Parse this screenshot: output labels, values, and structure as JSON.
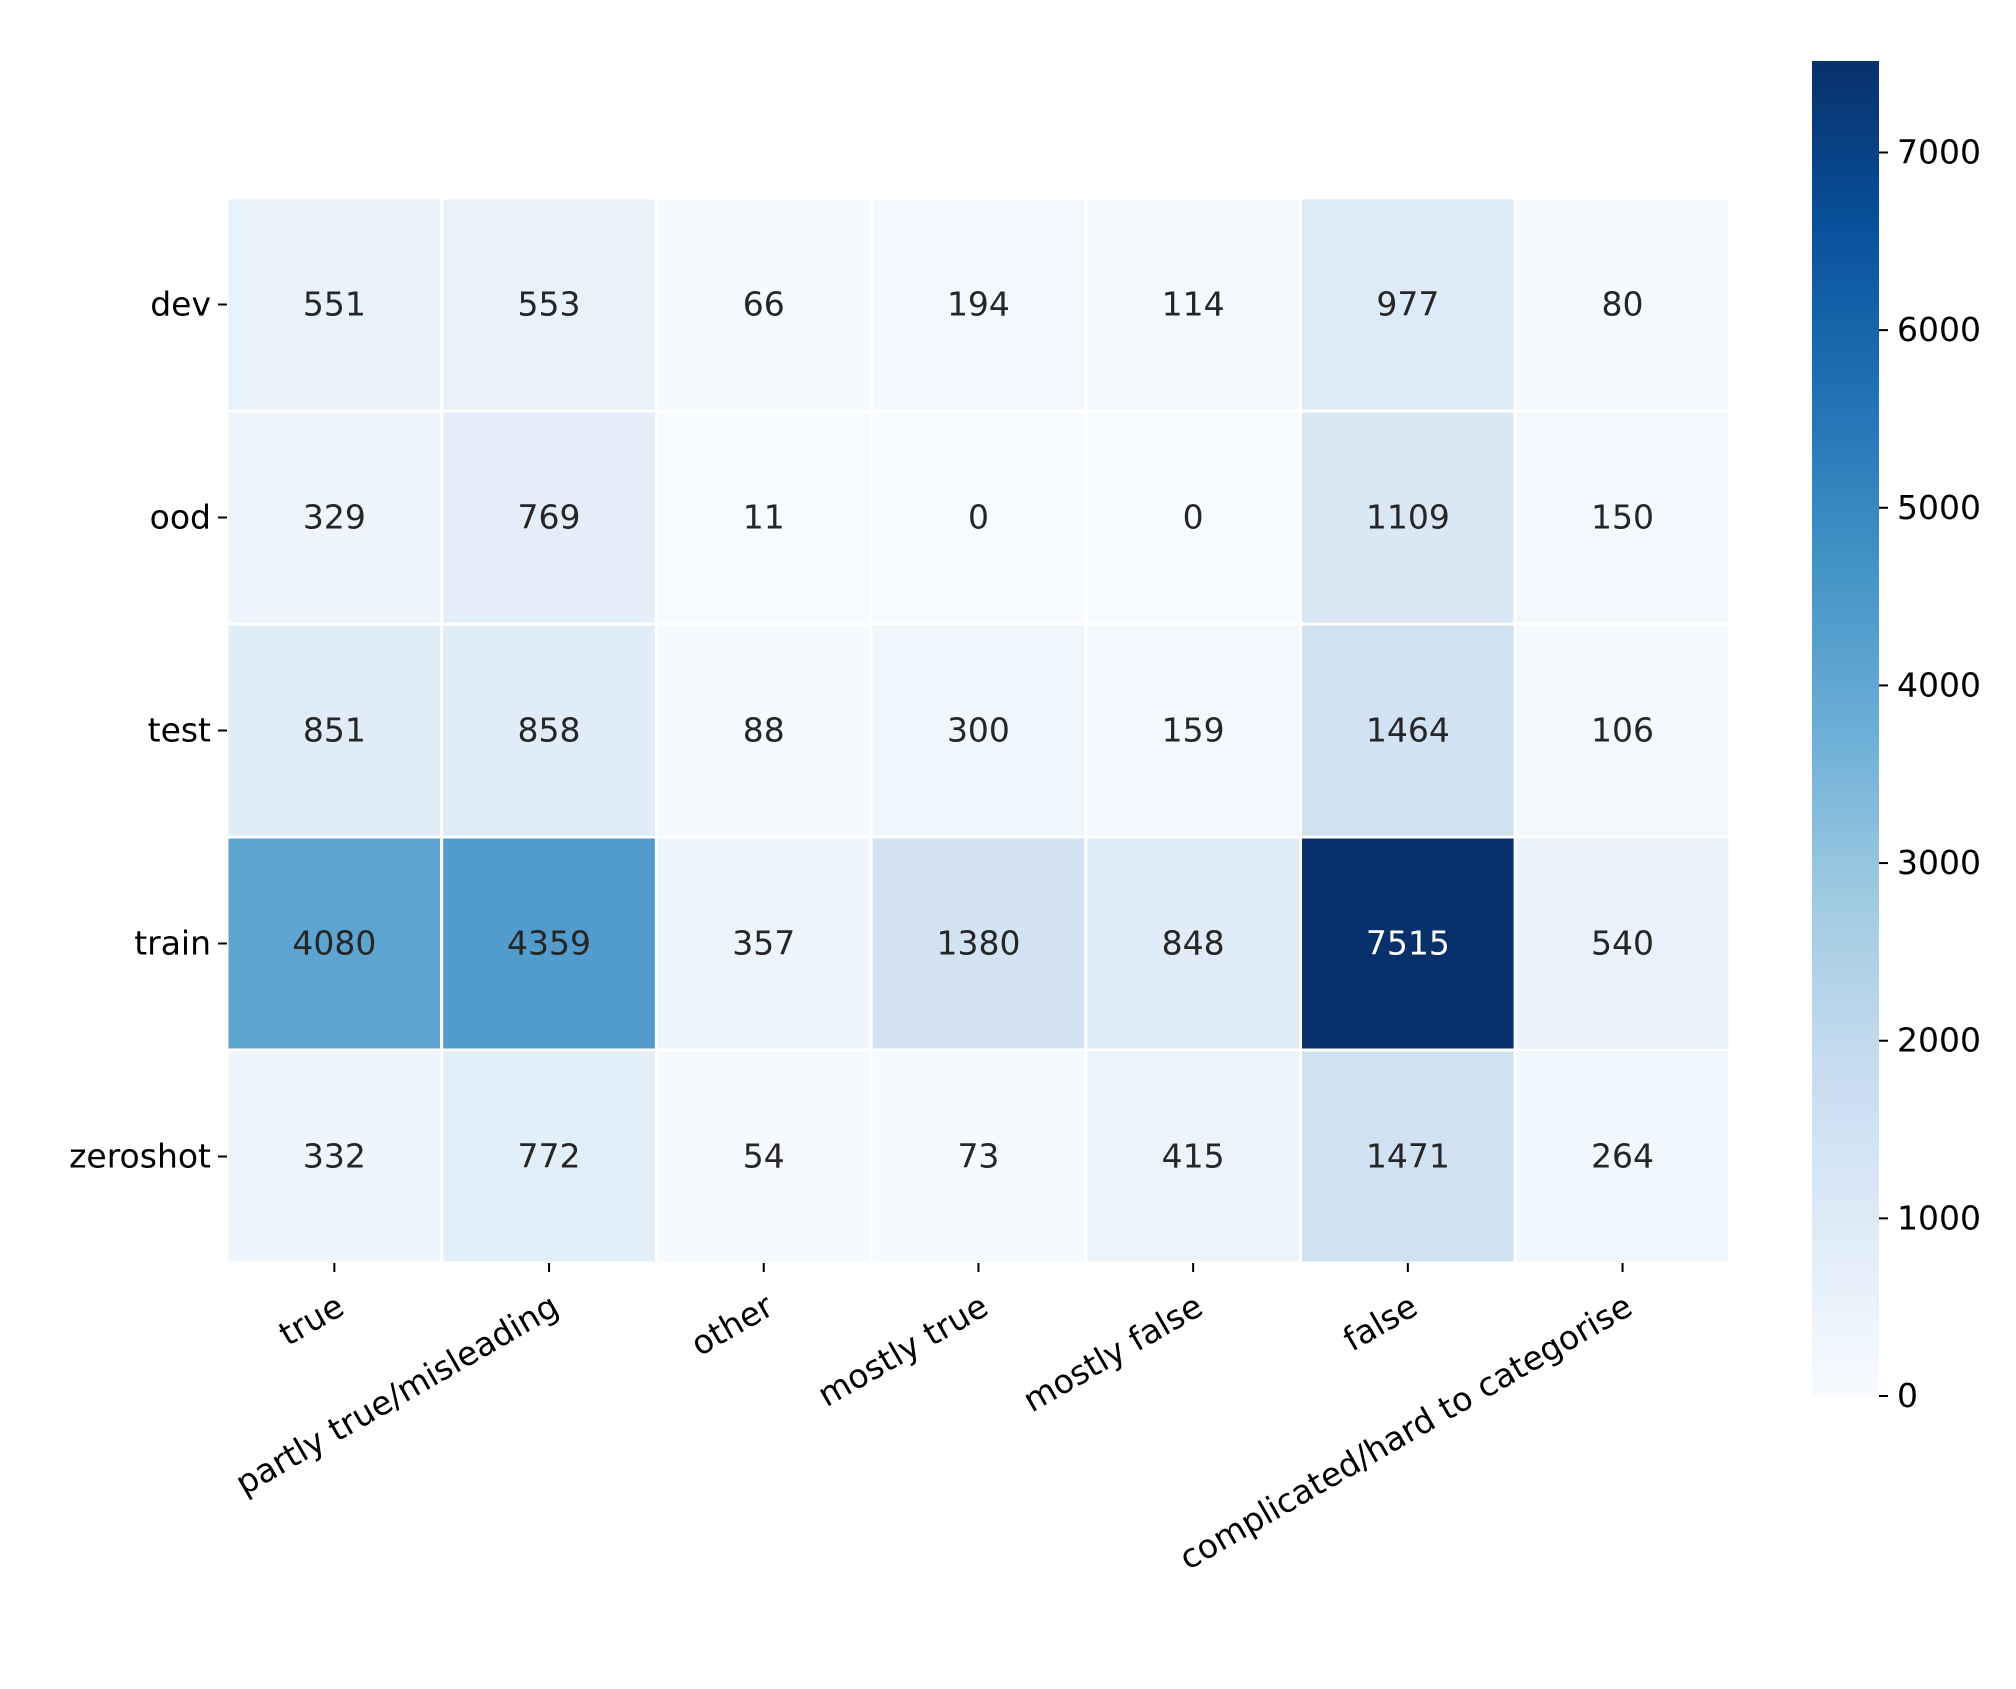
{
  "chart_data": {
    "type": "heatmap",
    "title": "",
    "xlabel": "",
    "ylabel": "",
    "rows": [
      "dev",
      "ood",
      "test",
      "train",
      "zeroshot"
    ],
    "columns": [
      "true",
      "partly true/misleading",
      "other",
      "mostly true",
      "mostly false",
      "false",
      "complicated/hard to categorise"
    ],
    "values": [
      [
        551,
        553,
        66,
        194,
        114,
        977,
        80
      ],
      [
        329,
        769,
        11,
        0,
        0,
        1109,
        150
      ],
      [
        851,
        858,
        88,
        300,
        159,
        1464,
        106
      ],
      [
        4080,
        4359,
        357,
        1380,
        848,
        7515,
        540
      ],
      [
        332,
        772,
        54,
        73,
        415,
        1471,
        264
      ]
    ],
    "colormap": "Blues",
    "color_range": [
      0,
      7515
    ],
    "colorbar": {
      "ticks": [
        0,
        1000,
        2000,
        3000,
        4000,
        5000,
        6000,
        7000
      ],
      "tick_labels": [
        "0",
        "1000",
        "2000",
        "3000",
        "4000",
        "5000",
        "6000",
        "7000"
      ]
    },
    "annotate": true,
    "cell_separator_color": "#ffffff",
    "text_color_dark": "#262626",
    "text_color_light": "#ffffff"
  }
}
